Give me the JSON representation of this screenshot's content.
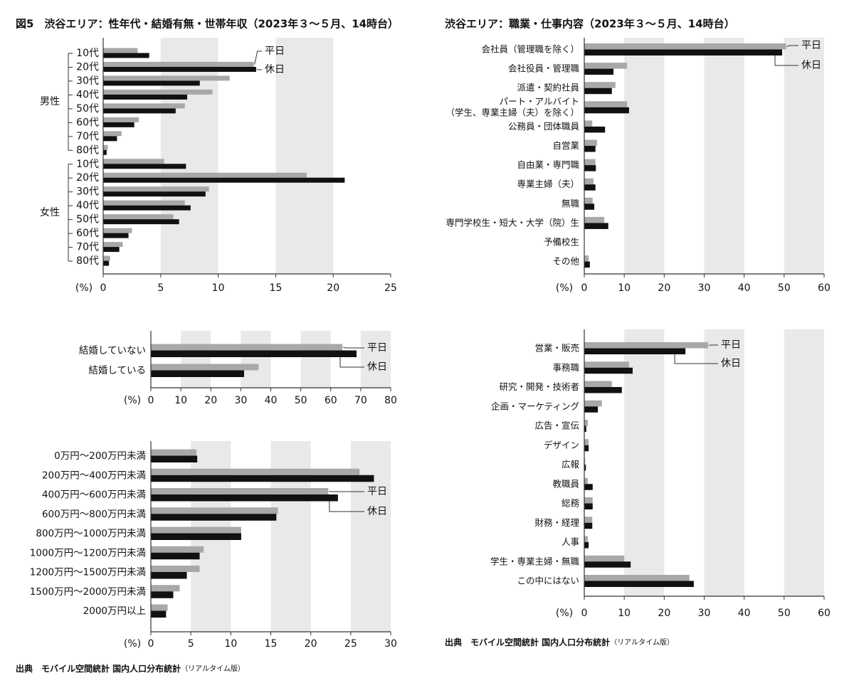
{
  "titles": {
    "left": "図5　渋谷エリア：性年代・結婚有無・世帯年収（2023年３～５月、14時台）",
    "right": "渋谷エリア：職業・仕事内容（2023年３～５月、14時台）"
  },
  "source": {
    "main": "出典　モバイル空間統計 国内人口分布統計",
    "note": "（リアルタイム版）"
  },
  "colors": {
    "weekday": "#a8a8a8",
    "holiday": "#111111",
    "band": "#e9e9e9",
    "axis": "#333333"
  },
  "chart_data": [
    {
      "type": "bar",
      "orientation": "horizontal",
      "groups": [
        {
          "label": "男性",
          "categories": [
            "10代",
            "20代",
            "30代",
            "40代",
            "50代",
            "60代",
            "70代",
            "80代"
          ]
        },
        {
          "label": "女性",
          "categories": [
            "10代",
            "20代",
            "30代",
            "40代",
            "50代",
            "60代",
            "70代",
            "80代"
          ]
        }
      ],
      "series": [
        {
          "name": "平日",
          "values": [
            3.0,
            13.1,
            11.0,
            9.5,
            7.1,
            3.1,
            1.6,
            0.4,
            5.3,
            17.7,
            9.2,
            7.1,
            6.1,
            2.5,
            1.7,
            0.6
          ]
        },
        {
          "name": "休日",
          "values": [
            4.0,
            13.3,
            8.4,
            7.3,
            6.3,
            2.7,
            1.2,
            0.3,
            7.2,
            21.0,
            8.9,
            7.6,
            6.6,
            2.2,
            1.4,
            0.5
          ]
        }
      ],
      "xlabel": "(%)",
      "xlim": [
        0,
        25
      ],
      "xticks": [
        0,
        5,
        10,
        15,
        20,
        25
      ],
      "shaded_bands": [
        [
          5,
          10
        ],
        [
          15,
          20
        ]
      ]
    },
    {
      "type": "bar",
      "orientation": "horizontal",
      "categories": [
        "会社員（管理職を除く）",
        "会社役員・管理職",
        "派遣・契約社員",
        [
          "パート・アルバイト",
          "（学生、専業主婦（夫）を除く）"
        ],
        "公務員・団体職員",
        "自営業",
        "自由業・専門職",
        "専業主婦（夫）",
        "無職",
        "専門学校生・短大・大学（院）生",
        "予備校生",
        "その他"
      ],
      "series": [
        {
          "name": "平日",
          "values": [
            50.5,
            10.7,
            7.8,
            10.7,
            2.0,
            3.2,
            2.8,
            2.3,
            2.1,
            5.0,
            0.0,
            1.1
          ]
        },
        {
          "name": "休日",
          "values": [
            49.5,
            7.3,
            6.9,
            11.2,
            5.2,
            2.8,
            2.9,
            2.8,
            2.5,
            6.0,
            0.0,
            1.4
          ]
        }
      ],
      "xlabel": "(%)",
      "xlim": [
        0,
        60
      ],
      "xticks": [
        0,
        10,
        20,
        30,
        40,
        50,
        60
      ],
      "shaded_bands": [
        [
          10,
          20
        ],
        [
          30,
          40
        ],
        [
          50,
          60
        ]
      ]
    },
    {
      "type": "bar",
      "orientation": "horizontal",
      "categories": [
        "結婚していない",
        "結婚している"
      ],
      "series": [
        {
          "name": "平日",
          "values": [
            63.9,
            35.9
          ]
        },
        {
          "name": "休日",
          "values": [
            68.6,
            31.1
          ]
        }
      ],
      "xlabel": "(%)",
      "xlim": [
        0,
        80
      ],
      "xticks": [
        0,
        10,
        20,
        30,
        40,
        50,
        60,
        70,
        80
      ],
      "shaded_bands": [
        [
          10,
          20
        ],
        [
          30,
          40
        ],
        [
          50,
          60
        ],
        [
          70,
          80
        ]
      ]
    },
    {
      "type": "bar",
      "orientation": "horizontal",
      "categories": [
        "0万円～200万円未満",
        "200万円～400万円未満",
        "400万円～600万円未満",
        "600万円～800万円未満",
        "800万円～1000万円未満",
        "1000万円～1200万円未満",
        "1200万円～1500万円未満",
        "1500万円～2000万円未満",
        "2000万円以上"
      ],
      "series": [
        {
          "name": "平日",
          "values": [
            5.7,
            26.1,
            22.2,
            15.9,
            11.3,
            6.6,
            6.1,
            3.6,
            2.1
          ]
        },
        {
          "name": "休日",
          "values": [
            5.8,
            27.9,
            23.4,
            15.7,
            11.3,
            6.1,
            4.5,
            2.8,
            1.9
          ]
        }
      ],
      "xlabel": "(%)",
      "xlim": [
        0,
        30
      ],
      "xticks": [
        0,
        5,
        10,
        15,
        20,
        25,
        30
      ],
      "shaded_bands": [
        [
          5,
          10
        ],
        [
          15,
          20
        ],
        [
          25,
          30
        ]
      ]
    },
    {
      "type": "bar",
      "orientation": "horizontal",
      "categories": [
        "営業・販売",
        "事務職",
        "研究・開発・技術者",
        "企画・マーケティング",
        "広告・宣伝",
        "デザイン",
        "広報",
        "教職員",
        "総務",
        "財務・経理",
        "人事",
        "学生・専業主婦・無職",
        "この中にはない"
      ],
      "series": [
        {
          "name": "平日",
          "values": [
            31.0,
            11.2,
            6.9,
            4.4,
            0.9,
            1.1,
            0.2,
            0.9,
            2.1,
            2.0,
            0.9,
            10.0,
            26.3
          ]
        },
        {
          "name": "休日",
          "values": [
            25.3,
            12.1,
            9.4,
            3.4,
            0.5,
            1.1,
            0.4,
            2.1,
            2.1,
            2.0,
            1.1,
            11.6,
            27.4
          ]
        }
      ],
      "xlabel": "(%)",
      "xlim": [
        0,
        60
      ],
      "xticks": [
        0,
        10,
        20,
        30,
        40,
        50,
        60
      ],
      "shaded_bands": [
        [
          10,
          20
        ],
        [
          30,
          40
        ],
        [
          50,
          60
        ]
      ]
    }
  ]
}
